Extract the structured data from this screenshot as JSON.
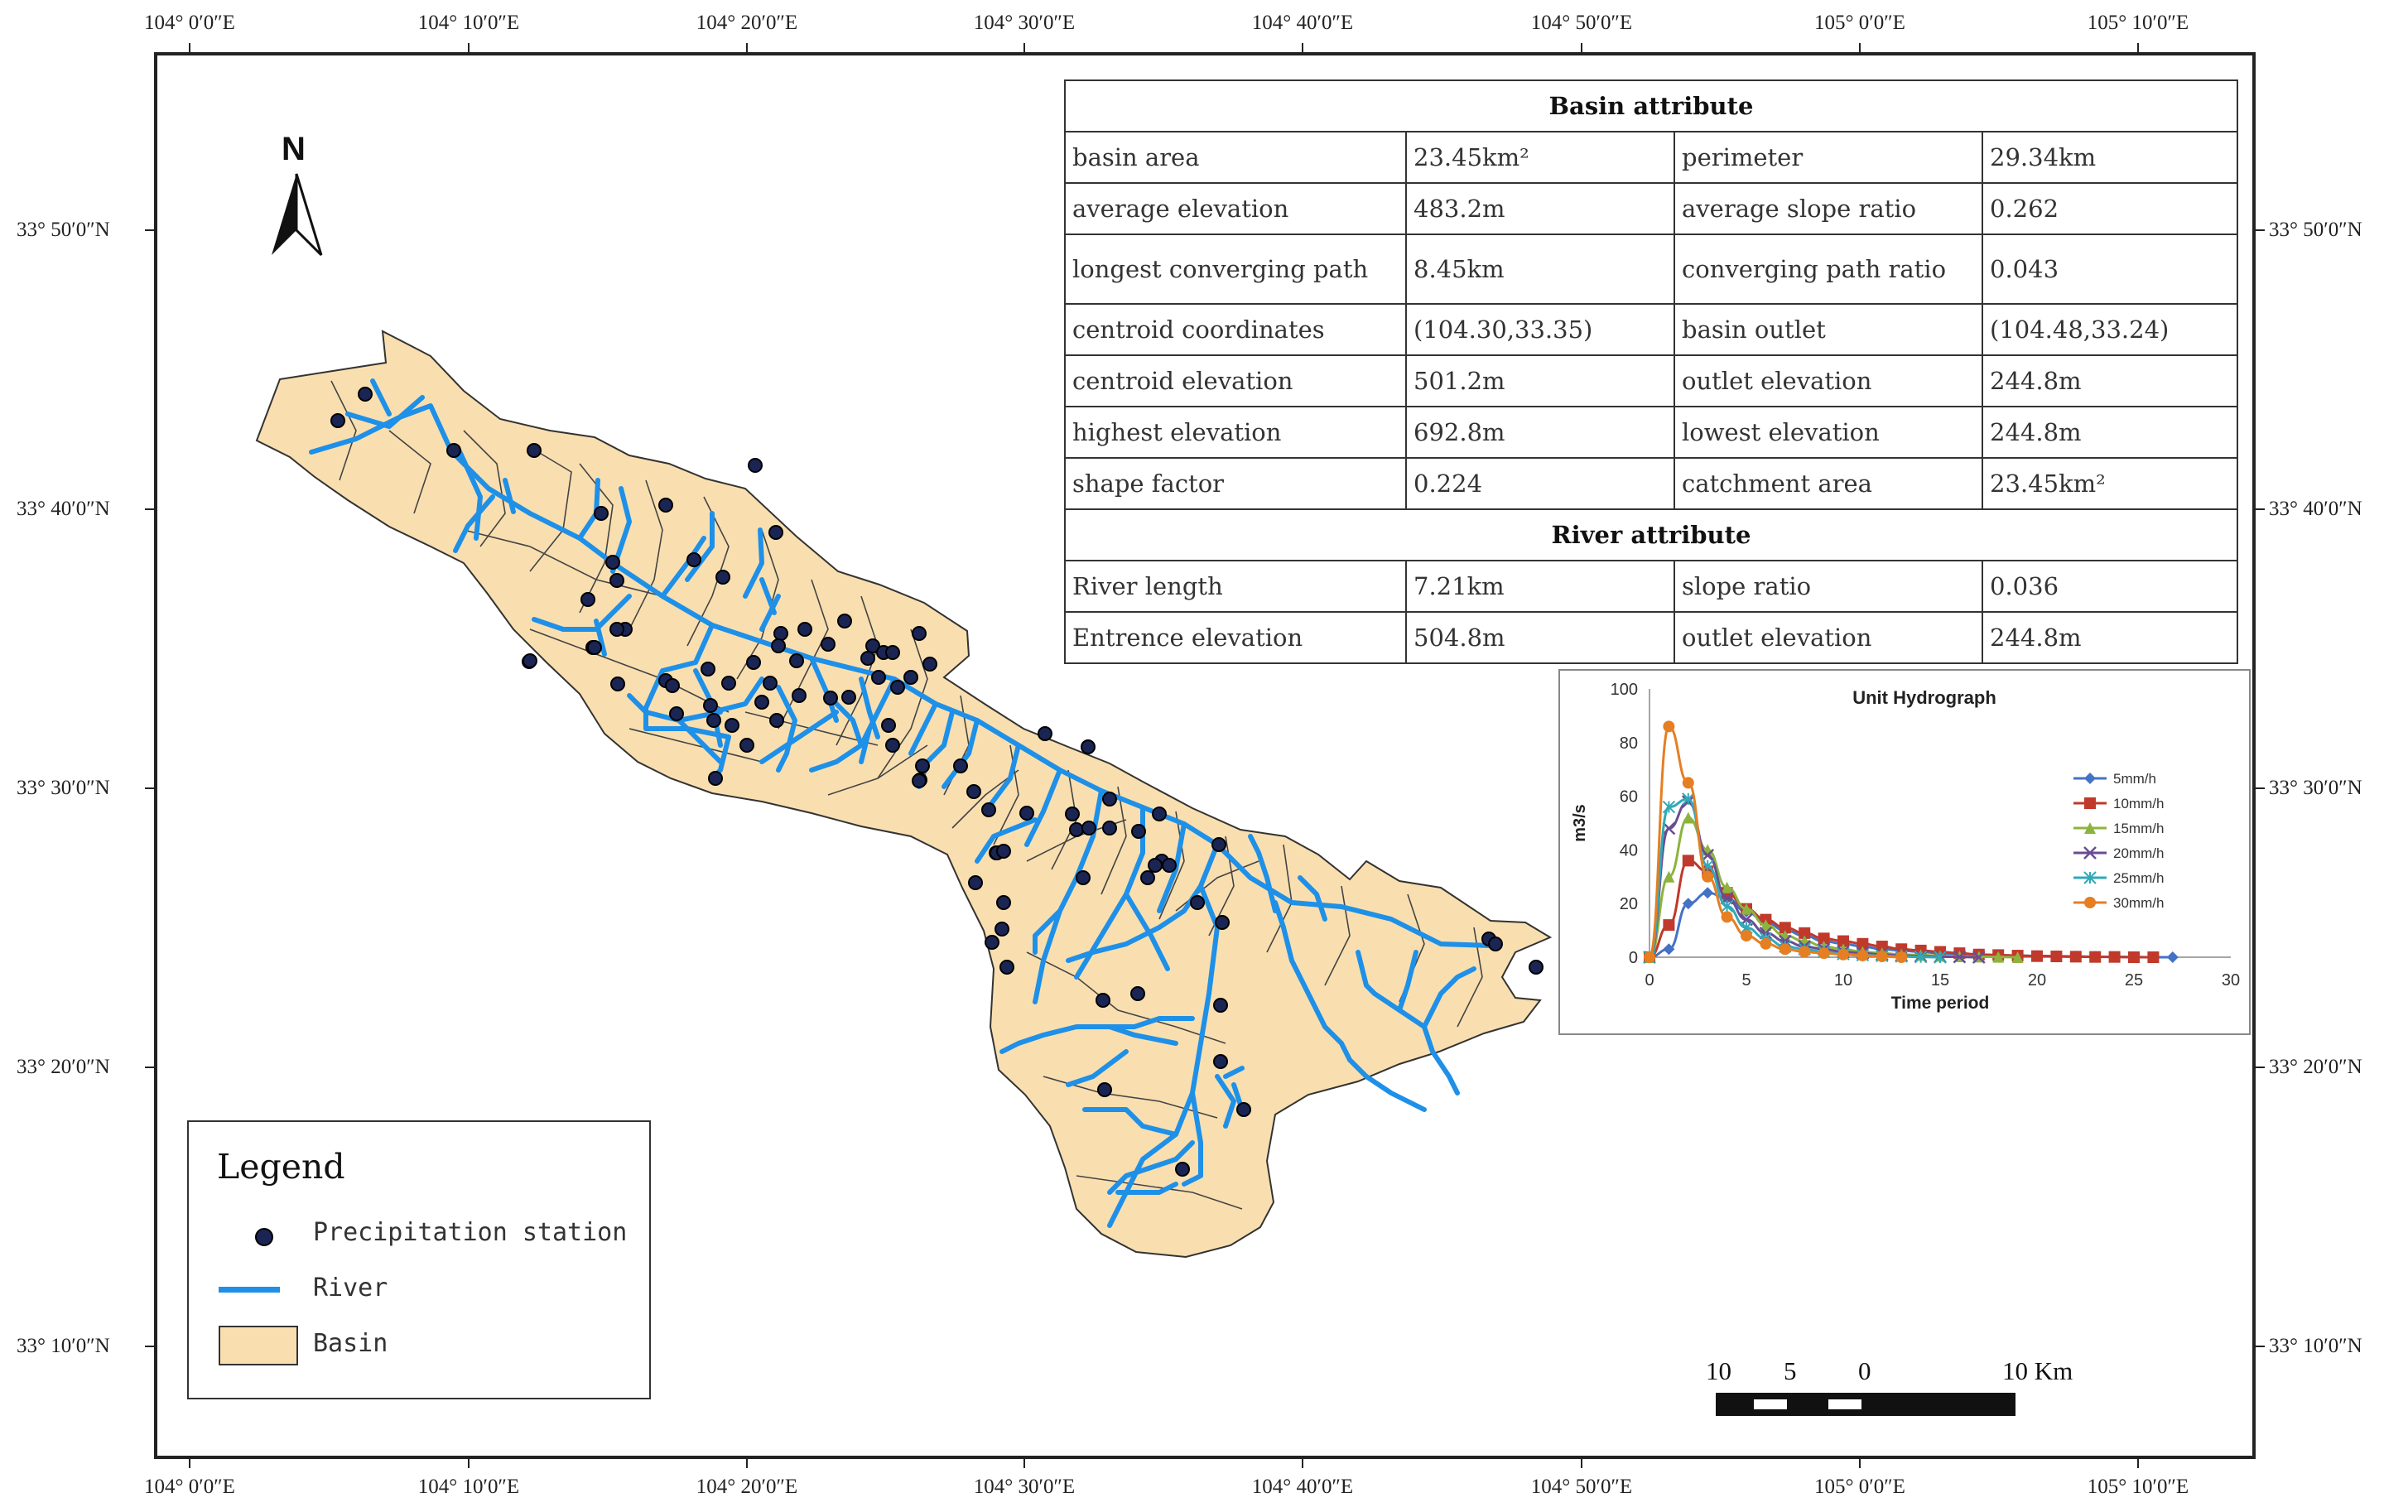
{
  "graticule": {
    "top_lon": [
      "104° 0′0″E",
      "104° 10′0″E",
      "104° 20′0″E",
      "104° 30′0″E",
      "104° 40′0″E",
      "104° 50′0″E",
      "105° 0′0″E",
      "105° 10′0″E"
    ],
    "bottom_lon": [
      "104° 0′0″E",
      "104° 10′0″E",
      "104° 20′0″E",
      "104° 30′0″E",
      "104° 40′0″E",
      "104° 50′0″E",
      "105° 0′0″E",
      "105° 10′0″E"
    ],
    "left_lat": [
      "33° 50′0″N",
      "33° 40′0″N",
      "33° 30′0″N",
      "33° 20′0″N",
      "33° 10′0″N"
    ],
    "right_lat": [
      "33° 50′0″N",
      "33° 40′0″N",
      "33° 30′0″N",
      "33° 20′0″N",
      "33° 10′0″N"
    ]
  },
  "north_arrow": {
    "label": "N"
  },
  "basin_table": {
    "basin_header": "Basin attribute",
    "river_header": "River attribute",
    "basin_rows": [
      [
        "basin area",
        "23.45km²",
        "perimeter",
        "29.34km"
      ],
      [
        "average elevation",
        "483.2m",
        "average slope ratio",
        "0.262"
      ],
      [
        "longest converging path",
        "8.45km",
        "converging path ratio",
        "0.043"
      ],
      [
        "centroid coordinates",
        "(104.30,33.35)",
        "basin outlet",
        "(104.48,33.24)"
      ],
      [
        "centroid elevation",
        "501.2m",
        "outlet elevation",
        "244.8m"
      ],
      [
        "highest elevation",
        "692.8m",
        "lowest elevation",
        "244.8m"
      ],
      [
        "shape factor",
        "0.224",
        "catchment area",
        "23.45km²"
      ]
    ],
    "river_rows": [
      [
        "River length",
        "7.21km",
        "slope ratio",
        "0.036"
      ],
      [
        "Entrence elevation",
        "504.8m",
        "outlet elevation",
        "244.8m"
      ]
    ]
  },
  "chart_data": {
    "type": "line",
    "title": "Unit Hydrograph",
    "xlabel": "Time period",
    "ylabel": "m3/s",
    "xlim": [
      0,
      30
    ],
    "ylim": [
      0,
      100
    ],
    "xticks": [
      0,
      5,
      10,
      15,
      20,
      25,
      30
    ],
    "yticks": [
      0,
      20,
      40,
      60,
      80,
      100
    ],
    "legend": "right",
    "series": [
      {
        "name": "5mm/h",
        "color": "#4472c4",
        "marker": "diamond",
        "values": [
          0,
          3,
          20,
          24,
          22,
          17,
          13,
          10,
          8,
          6,
          5,
          4,
          3,
          2.5,
          2,
          1.5,
          1.2,
          1,
          0.8,
          0.6,
          0.5,
          0.4,
          0.3,
          0.2,
          0.1,
          0.1,
          0,
          0
        ]
      },
      {
        "name": "10mm/h",
        "color": "#c0392b",
        "marker": "square",
        "values": [
          0,
          12,
          36,
          32,
          24,
          18,
          14,
          11,
          9,
          7,
          6,
          5,
          4,
          3,
          2.5,
          2,
          1.5,
          1,
          0.8,
          0.6,
          0.4,
          0.3,
          0.2,
          0.1,
          0.1,
          0,
          0
        ]
      },
      {
        "name": "15mm/h",
        "color": "#8db33f",
        "marker": "triangle",
        "values": [
          0,
          30,
          52,
          40,
          26,
          18,
          12,
          8,
          6,
          4,
          3,
          2,
          1.5,
          1,
          0.8,
          0.5,
          0.3,
          0.2,
          0.1,
          0
        ]
      },
      {
        "name": "20mm/h",
        "color": "#6a4c93",
        "marker": "x",
        "values": [
          0,
          48,
          58,
          38,
          22,
          14,
          9,
          6,
          4,
          3,
          2,
          1.5,
          1,
          0.6,
          0.4,
          0.2,
          0.1,
          0
        ]
      },
      {
        "name": "25mm/h",
        "color": "#31a9b8",
        "marker": "asterisk",
        "values": [
          0,
          56,
          59,
          34,
          19,
          11,
          7,
          4,
          3,
          2,
          1.2,
          0.8,
          0.5,
          0.3,
          0.1,
          0
        ]
      },
      {
        "name": "30mm/h",
        "color": "#e67e22",
        "marker": "circle",
        "values": [
          0,
          86,
          65,
          30,
          15,
          8,
          5,
          3,
          2,
          1.5,
          1,
          0.6,
          0.3,
          0
        ]
      }
    ]
  },
  "legend": {
    "title": "Legend",
    "station": "Precipitation station",
    "river": "River",
    "basin": "Basin"
  },
  "scale_bar": {
    "labels": [
      "10",
      "5",
      "0",
      "10 Km"
    ]
  },
  "colors": {
    "basin_fill": "#f9dfb0",
    "river": "#1e90e8",
    "station": "#1b2553",
    "frame": "#222222"
  }
}
